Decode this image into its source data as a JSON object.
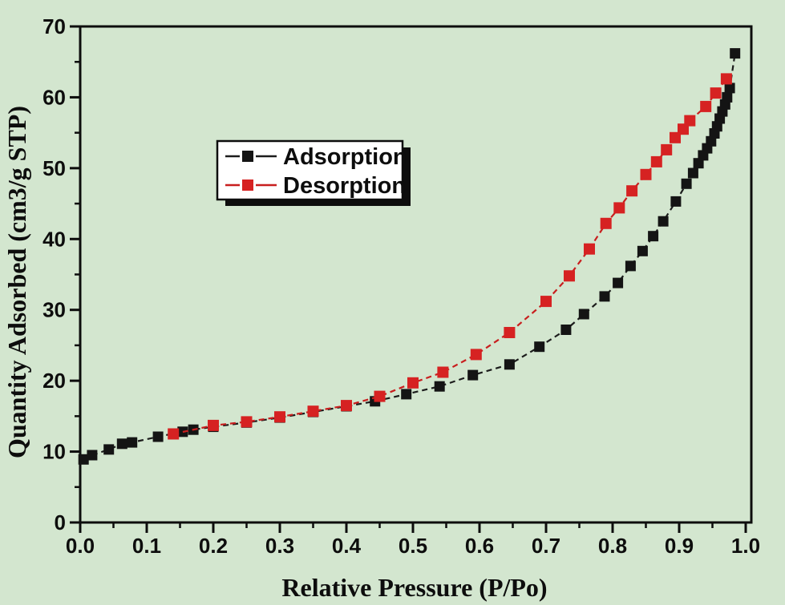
{
  "app": {
    "background_color": "#d3e6cf",
    "plot_border_color": "#0d0d0d"
  },
  "chart_data": {
    "type": "line",
    "title": "",
    "xlabel": "Relative Pressure (P/Po)",
    "ylabel": "Quantity Adsorbed (cm3/g STP)",
    "xlim": [
      0.0,
      1.008
    ],
    "ylim": [
      0,
      70
    ],
    "grid": false,
    "x_major_ticks": [
      0.0,
      0.1,
      0.2,
      0.3,
      0.4,
      0.5,
      0.6,
      0.7,
      0.8,
      0.9,
      1.0
    ],
    "x_tick_labels": [
      "0.0",
      "0.1",
      "0.2",
      "0.3",
      "0.4",
      "0.5",
      "0.6",
      "0.7",
      "0.8",
      "0.9",
      "1.0"
    ],
    "x_minor_ticks": [
      0.05,
      0.15,
      0.25,
      0.35,
      0.45,
      0.55,
      0.65,
      0.75,
      0.85,
      0.95
    ],
    "y_major_ticks": [
      0,
      10,
      20,
      30,
      40,
      50,
      60,
      70
    ],
    "y_tick_labels": [
      "0",
      "10",
      "20",
      "30",
      "40",
      "50",
      "60",
      "70"
    ],
    "y_minor_ticks": [
      5,
      15,
      25,
      35,
      45,
      55,
      65
    ],
    "legend": {
      "position": "upper-left-inside",
      "box_fill": "#ffffff",
      "box_border": "#0d0d0d",
      "shadow_color": "#0d0d0d"
    },
    "series": [
      {
        "name": "Adsorption",
        "marker": "square",
        "marker_color": "#141414",
        "line_color": "#1c1c1c",
        "line_style": "dashed",
        "points": [
          [
            0.005,
            8.9
          ],
          [
            0.018,
            9.5
          ],
          [
            0.043,
            10.3
          ],
          [
            0.063,
            11.1
          ],
          [
            0.078,
            11.3
          ],
          [
            0.117,
            12.1
          ],
          [
            0.154,
            12.8
          ],
          [
            0.17,
            13.1
          ],
          [
            0.2,
            13.5
          ],
          [
            0.25,
            14.1
          ],
          [
            0.3,
            14.8
          ],
          [
            0.35,
            15.6
          ],
          [
            0.4,
            16.4
          ],
          [
            0.443,
            17.1
          ],
          [
            0.49,
            18.1
          ],
          [
            0.54,
            19.2
          ],
          [
            0.59,
            20.8
          ],
          [
            0.645,
            22.3
          ],
          [
            0.69,
            24.8
          ],
          [
            0.73,
            27.2
          ],
          [
            0.757,
            29.4
          ],
          [
            0.788,
            31.9
          ],
          [
            0.808,
            33.8
          ],
          [
            0.827,
            36.2
          ],
          [
            0.845,
            38.3
          ],
          [
            0.861,
            40.4
          ],
          [
            0.876,
            42.5
          ],
          [
            0.895,
            45.3
          ],
          [
            0.911,
            47.8
          ],
          [
            0.921,
            49.3
          ],
          [
            0.929,
            50.7
          ],
          [
            0.936,
            51.8
          ],
          [
            0.942,
            52.8
          ],
          [
            0.948,
            53.8
          ],
          [
            0.953,
            54.9
          ],
          [
            0.957,
            55.9
          ],
          [
            0.961,
            57.0
          ],
          [
            0.965,
            58.0
          ],
          [
            0.969,
            59.0
          ],
          [
            0.972,
            60.0
          ],
          [
            0.976,
            61.3
          ],
          [
            0.984,
            66.2
          ]
        ]
      },
      {
        "name": "Desorption",
        "marker": "square",
        "marker_color": "#d62222",
        "line_color": "#c81e1e",
        "line_style": "dashed",
        "points": [
          [
            0.14,
            12.5
          ],
          [
            0.2,
            13.7
          ],
          [
            0.25,
            14.2
          ],
          [
            0.3,
            14.9
          ],
          [
            0.35,
            15.7
          ],
          [
            0.4,
            16.5
          ],
          [
            0.45,
            17.8
          ],
          [
            0.5,
            19.7
          ],
          [
            0.545,
            21.2
          ],
          [
            0.595,
            23.7
          ],
          [
            0.645,
            26.8
          ],
          [
            0.7,
            31.2
          ],
          [
            0.735,
            34.8
          ],
          [
            0.765,
            38.6
          ],
          [
            0.79,
            42.2
          ],
          [
            0.81,
            44.4
          ],
          [
            0.829,
            46.8
          ],
          [
            0.85,
            49.1
          ],
          [
            0.866,
            50.9
          ],
          [
            0.881,
            52.6
          ],
          [
            0.894,
            54.3
          ],
          [
            0.906,
            55.5
          ],
          [
            0.916,
            56.7
          ],
          [
            0.94,
            58.7
          ],
          [
            0.955,
            60.6
          ],
          [
            0.971,
            62.6
          ]
        ]
      }
    ]
  }
}
